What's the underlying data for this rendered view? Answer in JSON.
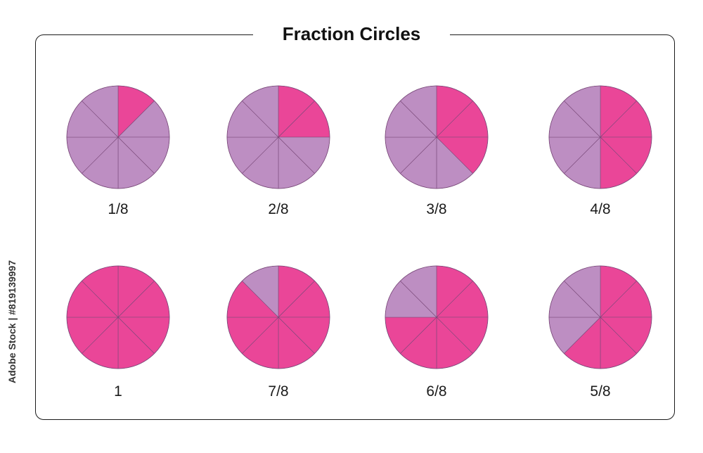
{
  "title": "Fraction Circles",
  "side_credit": "Adobe Stock | #819139997",
  "colors": {
    "filled": "#ea4698",
    "empty": "#bd8ec2",
    "divider": "#7a4a7a"
  },
  "pies": [
    {
      "label": "1/8",
      "slices": 8,
      "filled": [
        0
      ]
    },
    {
      "label": "2/8",
      "slices": 8,
      "filled": [
        0,
        1
      ]
    },
    {
      "label": "3/8",
      "slices": 8,
      "filled": [
        0,
        1,
        2
      ]
    },
    {
      "label": "4/8",
      "slices": 8,
      "filled": [
        0,
        1,
        2,
        3
      ]
    },
    {
      "label": "1",
      "slices": 8,
      "filled": [
        0,
        1,
        2,
        3,
        4,
        5,
        6,
        7
      ]
    },
    {
      "label": "7/8",
      "slices": 8,
      "filled": [
        0,
        1,
        2,
        3,
        4,
        5,
        6
      ]
    },
    {
      "label": "6/8",
      "slices": 8,
      "filled": [
        0,
        1,
        2,
        3,
        4,
        5
      ]
    },
    {
      "label": "5/8",
      "slices": 8,
      "filled": [
        0,
        1,
        2,
        3,
        4
      ]
    }
  ]
}
